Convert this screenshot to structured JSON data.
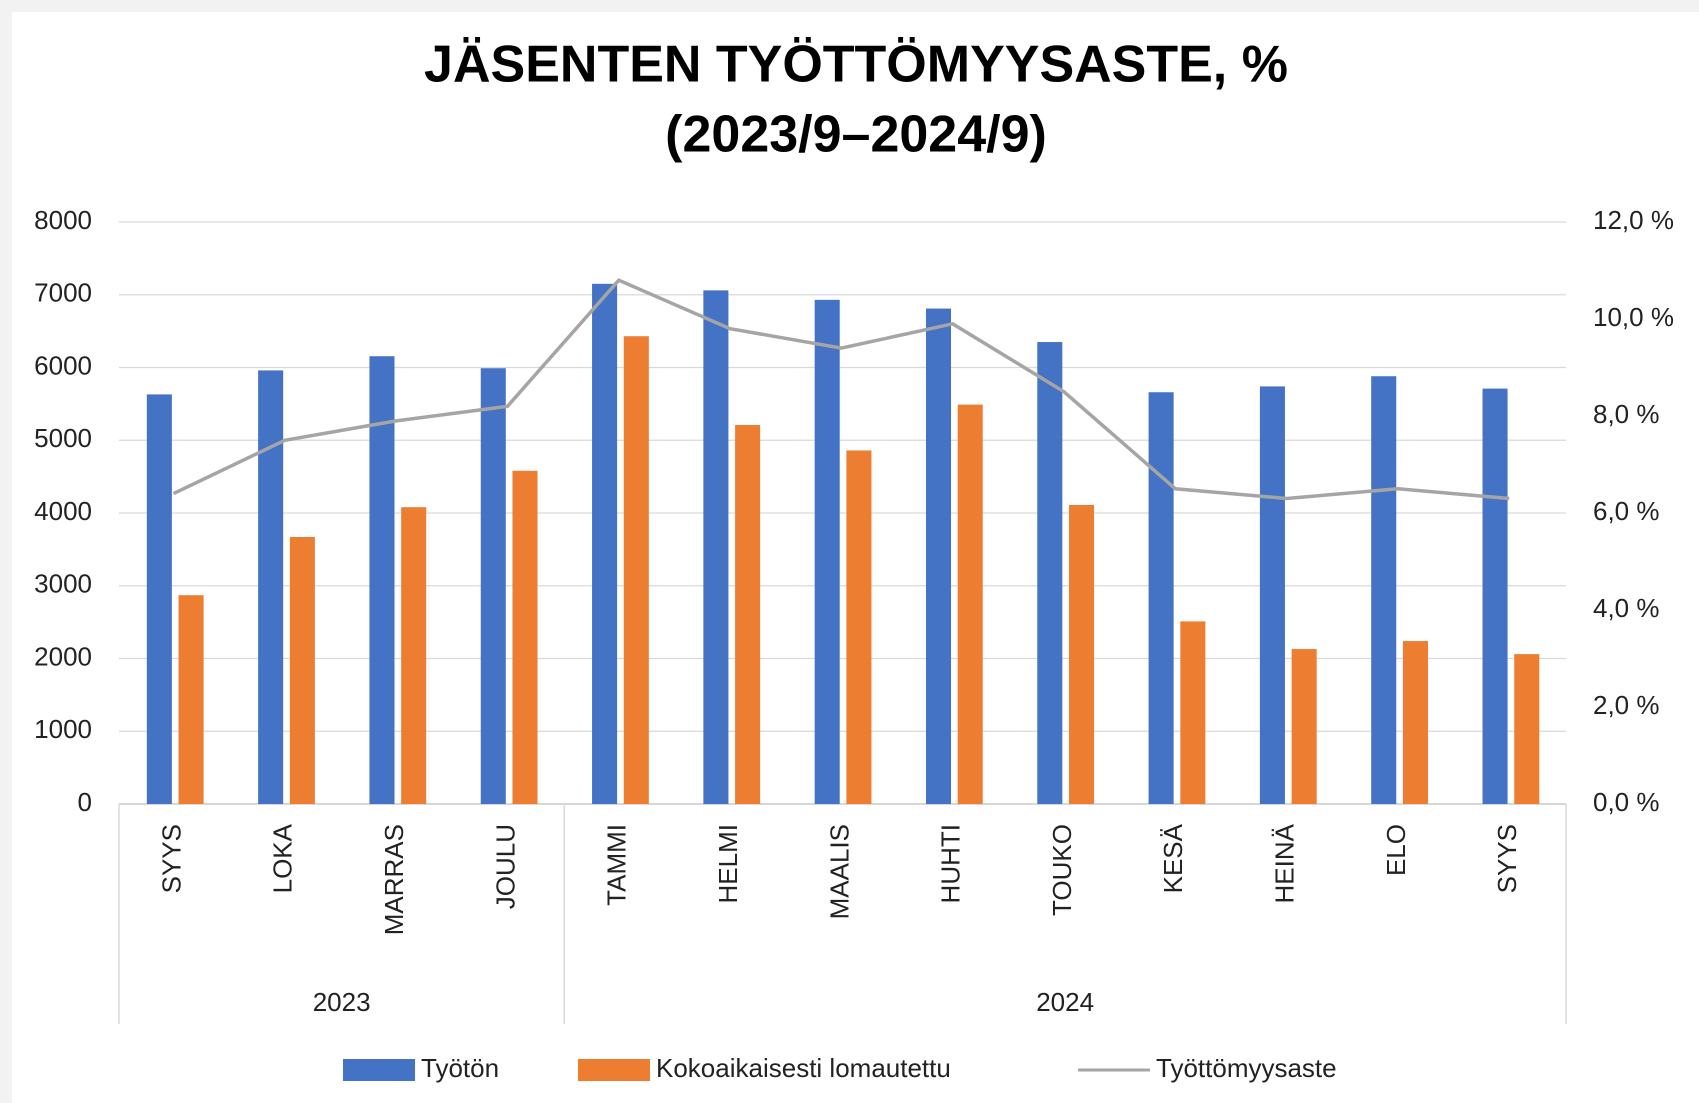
{
  "chart_data": {
    "type": "bar",
    "title": [
      "JÄSENTEN TYÖTTÖMYYSASTE, %",
      "(2023/9–2024/9)"
    ],
    "categories": [
      "SYYS",
      "LOKA",
      "MARRAS",
      "JOULU",
      "TAMMI",
      "HELMI",
      "MAALIS",
      "HUHTI",
      "TOUKO",
      "KESÄ",
      "HEINÄ",
      "ELO",
      "SYYS"
    ],
    "group_labels": [
      "2023",
      "2024"
    ],
    "group_sizes": [
      4,
      9
    ],
    "series": [
      {
        "name": "Työtön",
        "color": "#4472c4",
        "values": [
          5630,
          5960,
          6155,
          5990,
          7150,
          7060,
          6930,
          6810,
          6350,
          5660,
          5740,
          5880,
          5710
        ]
      },
      {
        "name": "Kokoaikaisesti lomautettu",
        "color": "#ed7d31",
        "values": [
          2870,
          3670,
          4080,
          4580,
          6430,
          5210,
          4860,
          5490,
          4110,
          2510,
          2130,
          2240,
          2060
        ]
      },
      {
        "name": "Työttömyysaste",
        "color": "#a5a5a5",
        "type": "line",
        "axis": "y2",
        "values": [
          6.4,
          7.5,
          7.9,
          8.2,
          10.8,
          9.8,
          9.4,
          9.9,
          8.5,
          6.5,
          6.3,
          6.5,
          6.3
        ]
      }
    ],
    "ylim": [
      0,
      8000
    ],
    "yticks": [
      0,
      1000,
      2000,
      3000,
      4000,
      5000,
      6000,
      7000,
      8000
    ],
    "y2lim": [
      0,
      12
    ],
    "y2ticks": [
      {
        "value": 0,
        "label": "0,0 %"
      },
      {
        "value": 2,
        "label": "2,0 %"
      },
      {
        "value": 4,
        "label": "4,0 %"
      },
      {
        "value": 6,
        "label": "6,0 %"
      },
      {
        "value": 8,
        "label": "8,0 %"
      },
      {
        "value": 10,
        "label": "10,0 %"
      },
      {
        "value": 12,
        "label": "12,0 %"
      }
    ],
    "grid": true,
    "legend": "bottom"
  }
}
